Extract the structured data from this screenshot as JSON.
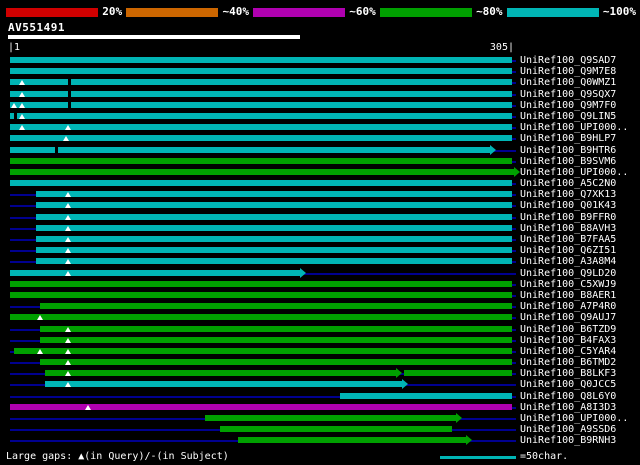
{
  "colors": {
    "cyan": "#00b5b5",
    "green": "#00a000",
    "purple": "#b000b0",
    "navy": "#000090",
    "red": "#d00000",
    "orange": "#cc6600"
  },
  "legend": {
    "segments": [
      {
        "color": "#d00000",
        "label": "20%"
      },
      {
        "color": "#cc6600",
        "label": "~40%"
      },
      {
        "color": "#b000b0",
        "label": "~60%"
      },
      {
        "color": "#00a000",
        "label": "~80%"
      },
      {
        "color": "#00b5b5",
        "label": "~100%"
      }
    ]
  },
  "query": {
    "name": "AV551491",
    "scale_left": "|1",
    "scale_right": "305|"
  },
  "rows": [
    {
      "label": "UniRef100_Q9SAD7",
      "segments": [
        {
          "s": 10,
          "e": 512,
          "c": "cyan"
        }
      ],
      "markers": [],
      "gaps": []
    },
    {
      "label": "UniRef100_Q9M7E8",
      "segments": [
        {
          "s": 10,
          "e": 512,
          "c": "cyan"
        }
      ],
      "markers": [],
      "gaps": []
    },
    {
      "label": "UniRef100_Q0WMZ1",
      "segments": [
        {
          "s": 10,
          "e": 512,
          "c": "cyan"
        }
      ],
      "markers": [
        22
      ],
      "gaps": [
        68
      ]
    },
    {
      "label": "UniRef100_Q9SQX7",
      "segments": [
        {
          "s": 10,
          "e": 512,
          "c": "cyan"
        }
      ],
      "markers": [
        22
      ],
      "gaps": [
        68
      ]
    },
    {
      "label": "UniRef100_Q9M7F0",
      "segments": [
        {
          "s": 10,
          "e": 512,
          "c": "cyan"
        }
      ],
      "markers": [
        14,
        22
      ],
      "gaps": [
        68
      ]
    },
    {
      "label": "UniRef100_Q9LIN5",
      "segments": [
        {
          "s": 10,
          "e": 512,
          "c": "cyan"
        }
      ],
      "markers": [
        22
      ],
      "gaps": [
        14
      ]
    },
    {
      "label": "UniRef100_UPI000..",
      "segments": [
        {
          "s": 10,
          "e": 512,
          "c": "cyan"
        }
      ],
      "markers": [
        22,
        68
      ],
      "gaps": []
    },
    {
      "label": "UniRef100_B9HLP7",
      "segments": [
        {
          "s": 10,
          "e": 512,
          "c": "cyan"
        }
      ],
      "markers": [
        66
      ],
      "gaps": []
    },
    {
      "label": "UniRef100_B9HTR6",
      "segments": [
        {
          "s": 10,
          "e": 490,
          "c": "cyan",
          "arrow": true
        }
      ],
      "markers": [],
      "gaps": [
        55
      ]
    },
    {
      "label": "UniRef100_B9SVM6",
      "segments": [
        {
          "s": 10,
          "e": 512,
          "c": "green"
        }
      ],
      "markers": [],
      "gaps": []
    },
    {
      "label": "UniRef100_UPI000..",
      "segments": [
        {
          "s": 10,
          "e": 514,
          "c": "green",
          "arrow": true
        }
      ],
      "markers": [],
      "gaps": []
    },
    {
      "label": "UniRef100_A5C2N0",
      "segments": [
        {
          "s": 10,
          "e": 512,
          "c": "cyan"
        }
      ],
      "markers": [],
      "gaps": []
    },
    {
      "label": "UniRef100_Q7XK13",
      "segments": [
        {
          "s": 36,
          "e": 512,
          "c": "cyan"
        }
      ],
      "markers": [
        68
      ],
      "gaps": []
    },
    {
      "label": "UniRef100_Q01K43",
      "segments": [
        {
          "s": 36,
          "e": 512,
          "c": "cyan"
        }
      ],
      "markers": [
        68
      ],
      "gaps": []
    },
    {
      "label": "UniRef100_B9FFR0",
      "segments": [
        {
          "s": 36,
          "e": 512,
          "c": "cyan"
        }
      ],
      "markers": [
        68
      ],
      "gaps": []
    },
    {
      "label": "UniRef100_B8AVH3",
      "segments": [
        {
          "s": 36,
          "e": 512,
          "c": "cyan"
        }
      ],
      "markers": [
        68
      ],
      "gaps": []
    },
    {
      "label": "UniRef100_B7FAA5",
      "segments": [
        {
          "s": 36,
          "e": 512,
          "c": "cyan"
        }
      ],
      "markers": [
        68
      ],
      "gaps": []
    },
    {
      "label": "UniRef100_Q6ZI51",
      "segments": [
        {
          "s": 36,
          "e": 512,
          "c": "cyan"
        }
      ],
      "markers": [
        68
      ],
      "gaps": []
    },
    {
      "label": "UniRef100_A3A8M4",
      "segments": [
        {
          "s": 36,
          "e": 512,
          "c": "cyan"
        }
      ],
      "markers": [
        68
      ],
      "gaps": []
    },
    {
      "label": "UniRef100_Q9LD20",
      "segments": [
        {
          "s": 10,
          "e": 300,
          "c": "cyan",
          "arrow": true
        }
      ],
      "markers": [
        68
      ],
      "gaps": []
    },
    {
      "label": "UniRef100_C5XWJ9",
      "segments": [
        {
          "s": 10,
          "e": 512,
          "c": "green"
        }
      ],
      "markers": [],
      "gaps": []
    },
    {
      "label": "UniRef100_B8AER1",
      "segments": [
        {
          "s": 10,
          "e": 512,
          "c": "green"
        }
      ],
      "markers": [],
      "gaps": []
    },
    {
      "label": "UniRef100_A7P4R0",
      "segments": [
        {
          "s": 40,
          "e": 512,
          "c": "green"
        }
      ],
      "markers": [],
      "gaps": []
    },
    {
      "label": "UniRef100_Q9AUJ7",
      "segments": [
        {
          "s": 10,
          "e": 512,
          "c": "green"
        }
      ],
      "markers": [
        40
      ],
      "gaps": []
    },
    {
      "label": "UniRef100_B6TZD9",
      "segments": [
        {
          "s": 40,
          "e": 512,
          "c": "green"
        }
      ],
      "markers": [
        68
      ],
      "gaps": []
    },
    {
      "label": "UniRef100_B4FAX3",
      "segments": [
        {
          "s": 40,
          "e": 512,
          "c": "green"
        }
      ],
      "markers": [
        68
      ],
      "gaps": []
    },
    {
      "label": "UniRef100_C5YAR4",
      "segments": [
        {
          "s": 14,
          "e": 512,
          "c": "green"
        }
      ],
      "markers": [
        40,
        68
      ],
      "gaps": []
    },
    {
      "label": "UniRef100_B6TMD2",
      "segments": [
        {
          "s": 40,
          "e": 512,
          "c": "green"
        }
      ],
      "markers": [
        68
      ],
      "gaps": []
    },
    {
      "label": "UniRef100_B8LKF3",
      "segments": [
        {
          "s": 45,
          "e": 396,
          "c": "green",
          "arrow": true
        },
        {
          "s": 404,
          "e": 512,
          "c": "green"
        }
      ],
      "markers": [
        68
      ],
      "gaps": []
    },
    {
      "label": "UniRef100_Q0JCC5",
      "segments": [
        {
          "s": 45,
          "e": 402,
          "c": "cyan",
          "arrow": true
        }
      ],
      "markers": [
        68
      ],
      "gaps": []
    },
    {
      "label": "UniRef100_Q8L6Y0",
      "segments": [
        {
          "s": 340,
          "e": 512,
          "c": "cyan"
        }
      ],
      "markers": [],
      "gaps": []
    },
    {
      "label": "UniRef100_A8I3D3",
      "segments": [
        {
          "s": 10,
          "e": 512,
          "c": "purple"
        }
      ],
      "markers": [
        88
      ],
      "gaps": []
    },
    {
      "label": "UniRef100_UPI000..",
      "segments": [
        {
          "s": 205,
          "e": 456,
          "c": "green",
          "arrow": true
        }
      ],
      "markers": [],
      "gaps": []
    },
    {
      "label": "UniRef100_A9SSD6",
      "segments": [
        {
          "s": 220,
          "e": 452,
          "c": "green"
        }
      ],
      "markers": [],
      "gaps": []
    },
    {
      "label": "UniRef100_B9RNH3",
      "segments": [
        {
          "s": 238,
          "e": 466,
          "c": "green",
          "arrow": true
        }
      ],
      "markers": [],
      "gaps": []
    }
  ],
  "footer": {
    "gaps_note": "Large gaps: ▲(in Query)/-(in Subject)",
    "scalebar_label": "=50char."
  },
  "chart_data": {
    "type": "bar",
    "subtype": "horizontal-alignment-ranges",
    "title": "AV551491",
    "x_axis": {
      "label": "query position",
      "range": [
        1,
        305
      ]
    },
    "identity_buckets": [
      "20%",
      "~40%",
      "~60%",
      "~80%",
      "~100%"
    ],
    "hits": [
      {
        "name": "UniRef100_Q9SAD7",
        "identity": "~100%",
        "ranges": [
          [
            1,
            305
          ]
        ]
      },
      {
        "name": "UniRef100_Q9M7E8",
        "identity": "~100%",
        "ranges": [
          [
            1,
            305
          ]
        ]
      },
      {
        "name": "UniRef100_Q0WMZ1",
        "identity": "~100%",
        "ranges": [
          [
            1,
            305
          ]
        ],
        "query_gaps": [
          8
        ],
        "subject_gaps": [
          36
        ]
      },
      {
        "name": "UniRef100_Q9SQX7",
        "identity": "~100%",
        "ranges": [
          [
            1,
            305
          ]
        ],
        "query_gaps": [
          8
        ],
        "subject_gaps": [
          36
        ]
      },
      {
        "name": "UniRef100_Q9M7F0",
        "identity": "~100%",
        "ranges": [
          [
            1,
            305
          ]
        ],
        "query_gaps": [
          3,
          8
        ],
        "subject_gaps": [
          36
        ]
      },
      {
        "name": "UniRef100_Q9LIN5",
        "identity": "~100%",
        "ranges": [
          [
            1,
            305
          ]
        ],
        "query_gaps": [
          8
        ],
        "subject_gaps": [
          3
        ]
      },
      {
        "name": "UniRef100_UPI000..",
        "identity": "~100%",
        "ranges": [
          [
            1,
            305
          ]
        ],
        "query_gaps": [
          8,
          36
        ]
      },
      {
        "name": "UniRef100_B9HLP7",
        "identity": "~100%",
        "ranges": [
          [
            1,
            305
          ]
        ],
        "query_gaps": [
          35
        ]
      },
      {
        "name": "UniRef100_B9HTR6",
        "identity": "~100%",
        "ranges": [
          [
            1,
            292
          ]
        ],
        "subject_gaps": [
          28
        ]
      },
      {
        "name": "UniRef100_B9SVM6",
        "identity": "~80%",
        "ranges": [
          [
            1,
            305
          ]
        ]
      },
      {
        "name": "UniRef100_UPI000..",
        "identity": "~80%",
        "ranges": [
          [
            1,
            305
          ]
        ]
      },
      {
        "name": "UniRef100_A5C2N0",
        "identity": "~100%",
        "ranges": [
          [
            1,
            305
          ]
        ]
      },
      {
        "name": "UniRef100_Q7XK13",
        "identity": "~100%",
        "ranges": [
          [
            17,
            305
          ]
        ],
        "query_gaps": [
          36
        ]
      },
      {
        "name": "UniRef100_Q01K43",
        "identity": "~100%",
        "ranges": [
          [
            17,
            305
          ]
        ],
        "query_gaps": [
          36
        ]
      },
      {
        "name": "UniRef100_B9FFR0",
        "identity": "~100%",
        "ranges": [
          [
            17,
            305
          ]
        ],
        "query_gaps": [
          36
        ]
      },
      {
        "name": "UniRef100_B8AVH3",
        "identity": "~100%",
        "ranges": [
          [
            17,
            305
          ]
        ],
        "query_gaps": [
          36
        ]
      },
      {
        "name": "UniRef100_B7FAA5",
        "identity": "~100%",
        "ranges": [
          [
            17,
            305
          ]
        ],
        "query_gaps": [
          36
        ]
      },
      {
        "name": "UniRef100_Q6ZI51",
        "identity": "~100%",
        "ranges": [
          [
            17,
            305
          ]
        ],
        "query_gaps": [
          36
        ]
      },
      {
        "name": "UniRef100_A3A8M4",
        "identity": "~100%",
        "ranges": [
          [
            17,
            305
          ]
        ],
        "query_gaps": [
          36
        ]
      },
      {
        "name": "UniRef100_Q9LD20",
        "identity": "~100%",
        "ranges": [
          [
            1,
            177
          ]
        ],
        "query_gaps": [
          36
        ]
      },
      {
        "name": "UniRef100_C5XWJ9",
        "identity": "~80%",
        "ranges": [
          [
            1,
            305
          ]
        ]
      },
      {
        "name": "UniRef100_B8AER1",
        "identity": "~80%",
        "ranges": [
          [
            1,
            305
          ]
        ]
      },
      {
        "name": "UniRef100_A7P4R0",
        "identity": "~80%",
        "ranges": [
          [
            19,
            305
          ]
        ]
      },
      {
        "name": "UniRef100_Q9AUJ7",
        "identity": "~80%",
        "ranges": [
          [
            1,
            305
          ]
        ],
        "query_gaps": [
          19
        ]
      },
      {
        "name": "UniRef100_B6TZD9",
        "identity": "~80%",
        "ranges": [
          [
            19,
            305
          ]
        ],
        "query_gaps": [
          36
        ]
      },
      {
        "name": "UniRef100_B4FAX3",
        "identity": "~80%",
        "ranges": [
          [
            19,
            305
          ]
        ],
        "query_gaps": [
          36
        ]
      },
      {
        "name": "UniRef100_C5YAR4",
        "identity": "~80%",
        "ranges": [
          [
            3,
            305
          ]
        ],
        "query_gaps": [
          19,
          36
        ]
      },
      {
        "name": "UniRef100_B6TMD2",
        "identity": "~80%",
        "ranges": [
          [
            19,
            305
          ]
        ],
        "query_gaps": [
          36
        ]
      },
      {
        "name": "UniRef100_B8LKF3",
        "identity": "~80%",
        "ranges": [
          [
            22,
            235
          ],
          [
            240,
            305
          ]
        ],
        "query_gaps": [
          36
        ]
      },
      {
        "name": "UniRef100_Q0JCC5",
        "identity": "~100%",
        "ranges": [
          [
            22,
            238
          ]
        ],
        "query_gaps": [
          36
        ]
      },
      {
        "name": "UniRef100_Q8L6Y0",
        "identity": "~100%",
        "ranges": [
          [
            201,
            305
          ]
        ]
      },
      {
        "name": "UniRef100_A8I3D3",
        "identity": "~60%",
        "ranges": [
          [
            1,
            305
          ]
        ],
        "query_gaps": [
          48
        ]
      },
      {
        "name": "UniRef100_UPI000..",
        "identity": "~80%",
        "ranges": [
          [
            119,
            271
          ]
        ]
      },
      {
        "name": "UniRef100_A9SSD6",
        "identity": "~80%",
        "ranges": [
          [
            128,
            269
          ]
        ]
      },
      {
        "name": "UniRef100_B9RNH3",
        "identity": "~80%",
        "ranges": [
          [
            139,
            277
          ]
        ]
      }
    ],
    "scale_bar": {
      "label": "=50char.",
      "color": "#00b5b5"
    },
    "legend_position": "top"
  }
}
